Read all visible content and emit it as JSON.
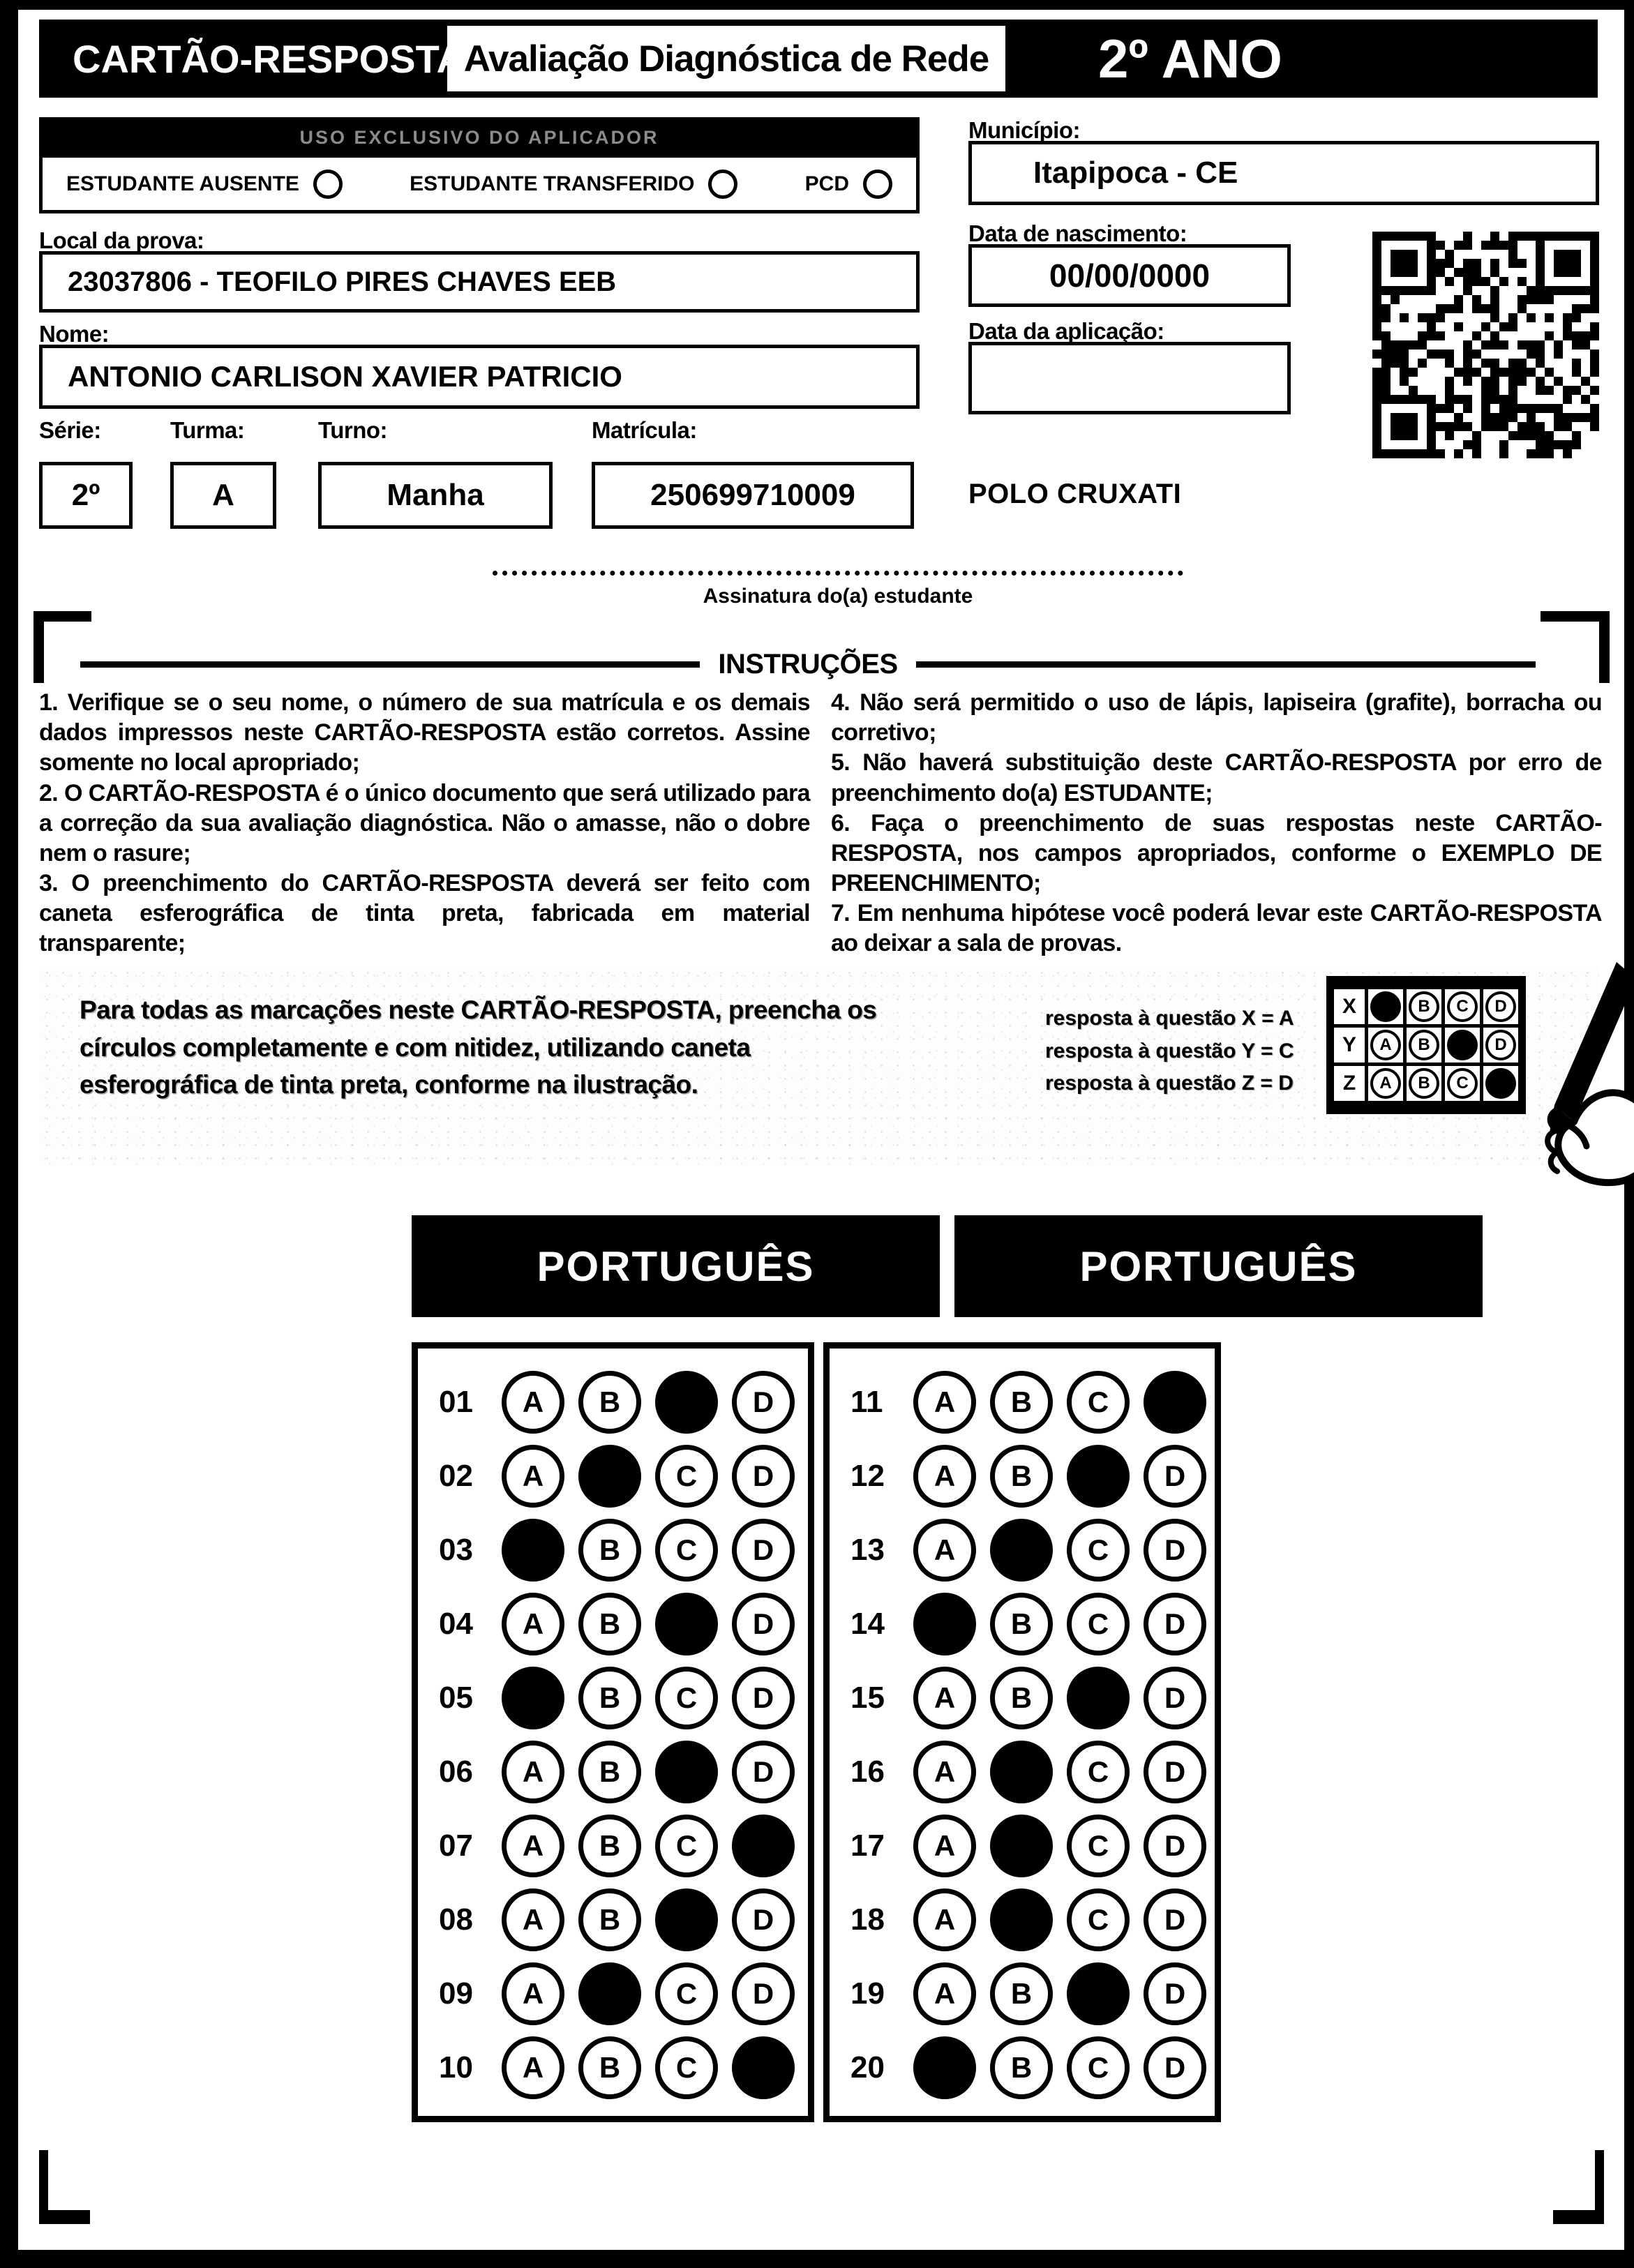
{
  "colors": {
    "ink": "#000000",
    "paper": "#ffffff"
  },
  "header": {
    "card_title": "CARTÃO-RESPOSTA",
    "assessment_title": "Avaliação Diagnóstica de Rede",
    "grade": "2º ANO"
  },
  "applicator": {
    "bar_label": "USO EXCLUSIVO DO APLICADOR",
    "options": [
      {
        "label": "ESTUDANTE AUSENTE"
      },
      {
        "label": "ESTUDANTE TRANSFERIDO"
      },
      {
        "label": "PCD"
      }
    ]
  },
  "form": {
    "local_label": "Local da prova:",
    "local_value": "23037806 - TEOFILO PIRES CHAVES EEB",
    "nome_label": "Nome:",
    "nome_value": "ANTONIO CARLISON XAVIER PATRICIO",
    "serie_label": "Série:",
    "serie_value": "2º",
    "turma_label": "Turma:",
    "turma_value": "A",
    "turno_label": "Turno:",
    "turno_value": "Manha",
    "matricula_label": "Matrícula:",
    "matricula_value": "250699710009",
    "municipio_label": "Município:",
    "municipio_value": "Itapipoca - CE",
    "nascimento_label": "Data de nascimento:",
    "nascimento_value": "00/00/0000",
    "aplicacao_label": "Data da aplicação:",
    "aplicacao_value": "",
    "polo": "POLO CRUXATI"
  },
  "signature_label": "Assinatura do(a) estudante",
  "instructions": {
    "title": "INSTRUÇÕES",
    "left_items": [
      "1. Verifique se o seu nome, o número de sua matrícula e os demais dados impressos neste CARTÃO-RESPOSTA estão corretos. Assine somente no local apropriado;",
      "2. O CARTÃO-RESPOSTA é o único documento que será utilizado para a correção da sua avaliação diagnóstica. Não o amasse, não o dobre nem o rasure;",
      "3. O preenchimento do CARTÃO-RESPOSTA deverá ser feito com caneta esferográfica de tinta preta, fabricada em material transparente;"
    ],
    "right_items": [
      "4. Não será permitido o uso de lápis, lapiseira (grafite), borracha ou corretivo;",
      "5. Não haverá substituição deste CARTÃO-RESPOSTA por erro de preenchimento do(a) ESTUDANTE;",
      "6. Faça o preenchimento de suas respostas neste CARTÃO-RESPOSTA, nos campos apropriados, conforme o EXEMPLO DE PREENCHIMENTO;",
      "7. Em nenhuma hipótese você poderá levar este CARTÃO-RESPOSTA ao deixar a sala de provas."
    ]
  },
  "example": {
    "text": "Para todas as marcações neste CARTÃO-RESPOSTA, preencha os círculos completamente e com nitidez, utilizando caneta esferográfica de tinta preta, conforme na ilustração.",
    "legend": [
      "resposta à questão X = A",
      "resposta à questão Y = C",
      "resposta à questão Z = D"
    ],
    "option_letters": [
      "A",
      "B",
      "C",
      "D"
    ],
    "rows": [
      {
        "label": "X",
        "filled": "A"
      },
      {
        "label": "Y",
        "filled": "C"
      },
      {
        "label": "Z",
        "filled": "D"
      }
    ]
  },
  "answer_sections": [
    {
      "title": "PORTUGUÊS",
      "option_letters": [
        "A",
        "B",
        "C",
        "D"
      ],
      "questions": [
        {
          "number": "01",
          "marked": "C"
        },
        {
          "number": "02",
          "marked": "B"
        },
        {
          "number": "03",
          "marked": "A"
        },
        {
          "number": "04",
          "marked": "C"
        },
        {
          "number": "05",
          "marked": "A"
        },
        {
          "number": "06",
          "marked": "C"
        },
        {
          "number": "07",
          "marked": "D"
        },
        {
          "number": "08",
          "marked": "C"
        },
        {
          "number": "09",
          "marked": "B"
        },
        {
          "number": "10",
          "marked": "D"
        }
      ]
    },
    {
      "title": "PORTUGUÊS",
      "option_letters": [
        "A",
        "B",
        "C",
        "D"
      ],
      "questions": [
        {
          "number": "11",
          "marked": "D"
        },
        {
          "number": "12",
          "marked": "C"
        },
        {
          "number": "13",
          "marked": "B"
        },
        {
          "number": "14",
          "marked": "A"
        },
        {
          "number": "15",
          "marked": "C"
        },
        {
          "number": "16",
          "marked": "B"
        },
        {
          "number": "17",
          "marked": "B"
        },
        {
          "number": "18",
          "marked": "B"
        },
        {
          "number": "19",
          "marked": "C"
        },
        {
          "number": "20",
          "marked": "A"
        }
      ]
    }
  ]
}
